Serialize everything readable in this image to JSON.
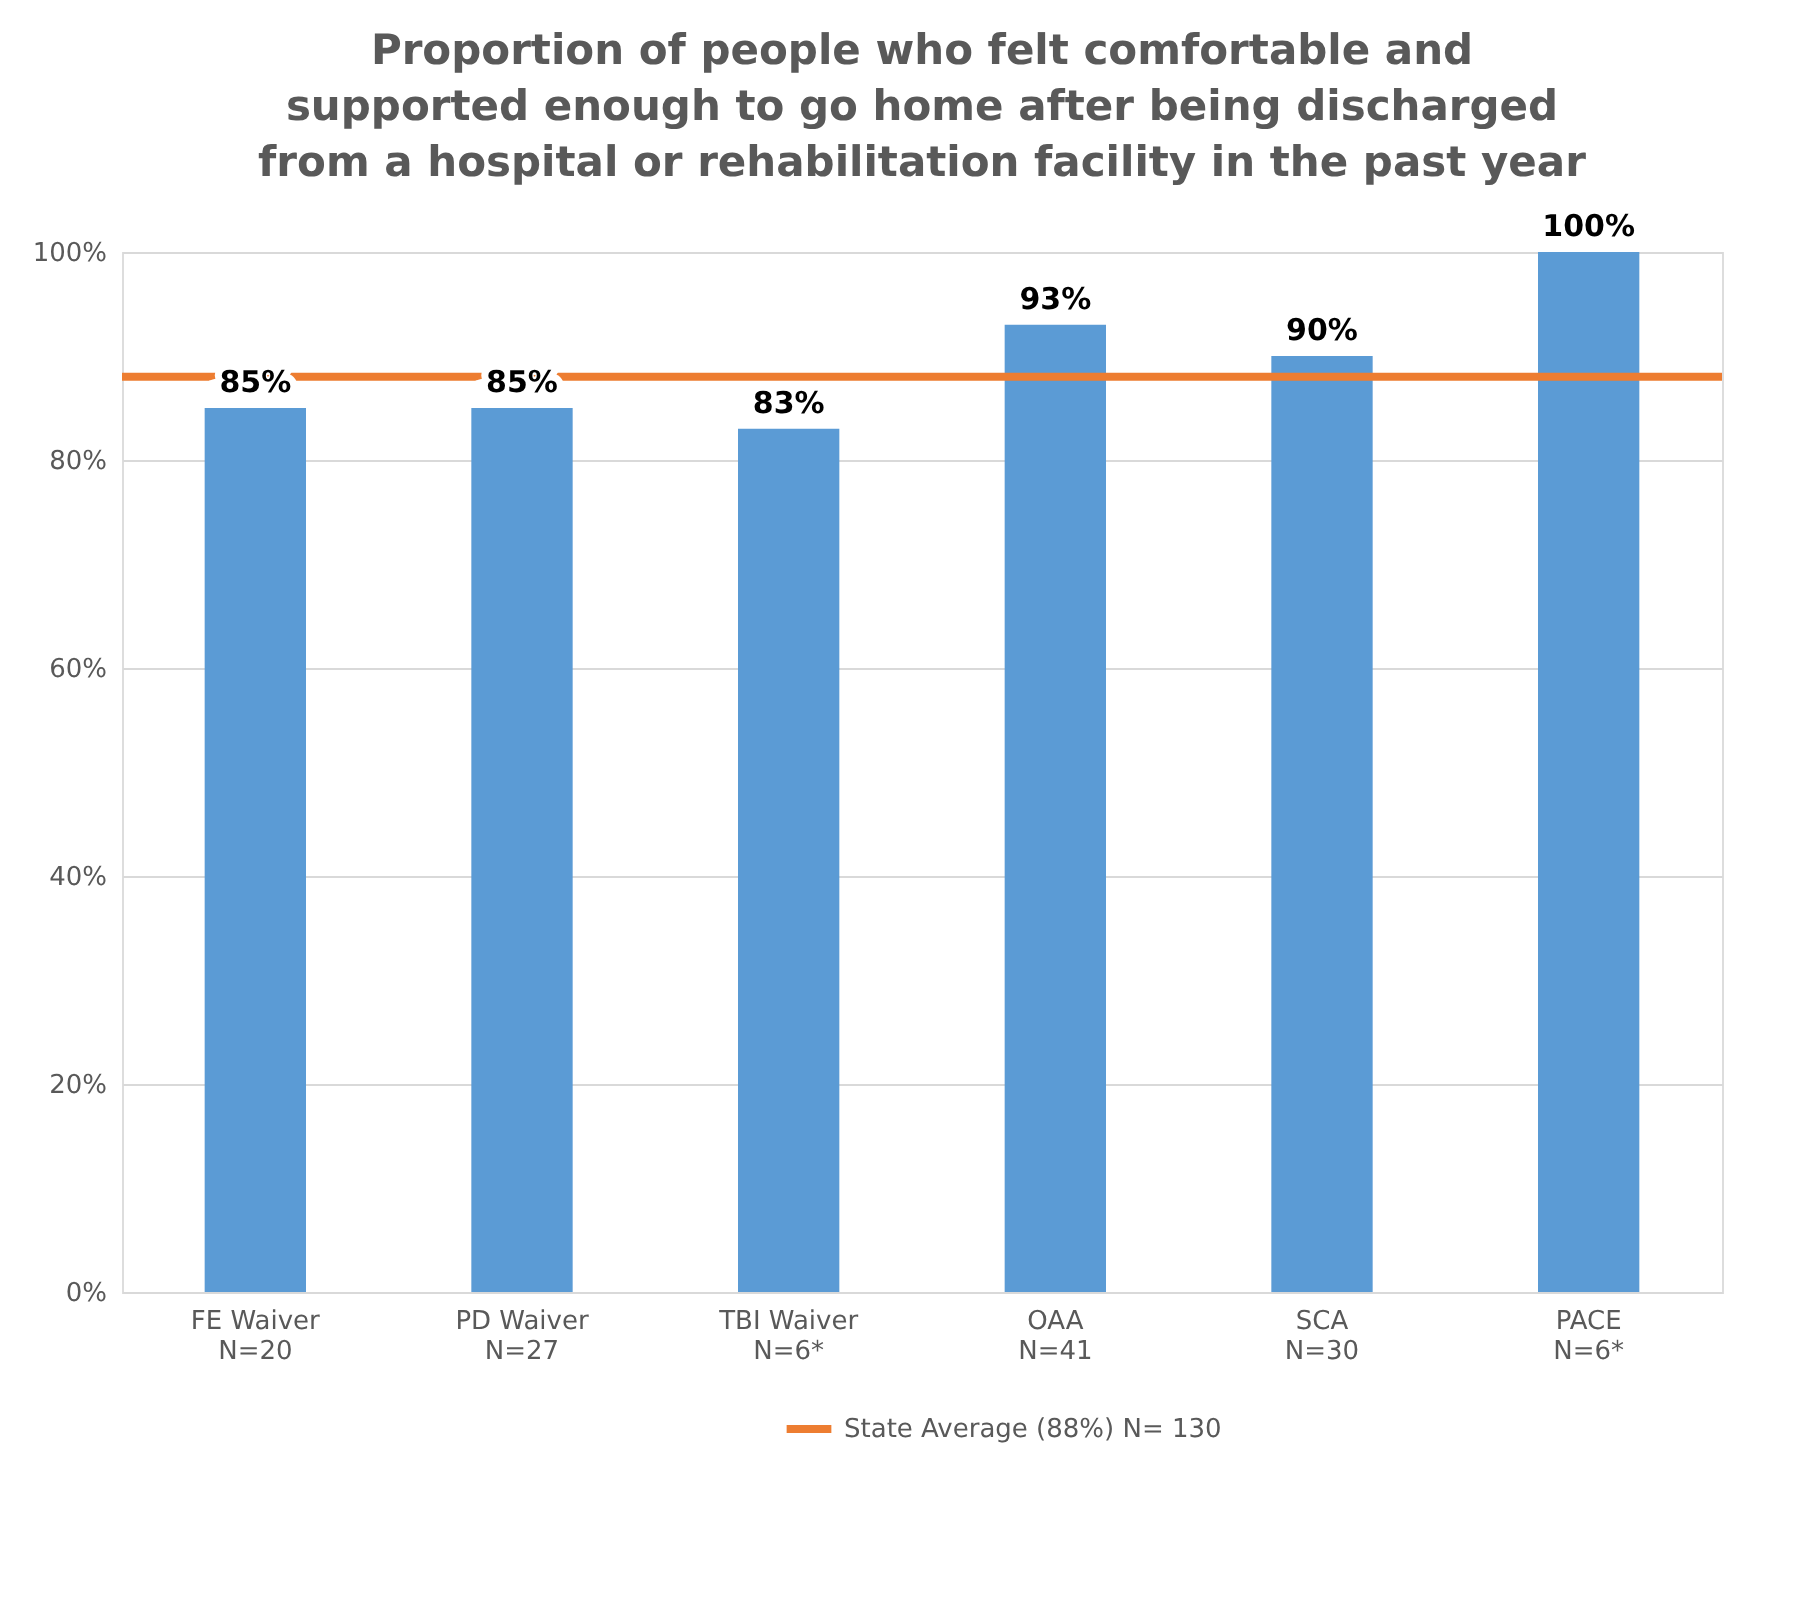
{
  "chart_data": {
    "type": "bar",
    "title": "Proportion of people who felt comfortable and\nsupported enough to go home after being discharged\nfrom a hospital or rehabilitation facility in the past year",
    "categories": [
      "FE Waiver\nN=20",
      "PD Waiver\nN=27",
      "TBI Waiver\nN=6*",
      "OAA\nN=41",
      "SCA\nN=30",
      "PACE\nN=6*"
    ],
    "values": [
      85,
      85,
      83,
      93,
      90,
      100
    ],
    "color": "#5b9bd5",
    "data_labels": true,
    "value_labels": [
      "85%",
      "85%",
      "83%",
      "93%",
      "90%",
      "100%"
    ],
    "ylim": [
      0,
      100
    ],
    "yticks": [
      {
        "value": 0,
        "label": "0%"
      },
      {
        "value": 20,
        "label": "20%"
      },
      {
        "value": 40,
        "label": "40%"
      },
      {
        "value": 60,
        "label": "60%"
      },
      {
        "value": 80,
        "label": "80%"
      },
      {
        "value": 100,
        "label": "100%"
      }
    ],
    "grid": "y",
    "legend": "bottom",
    "ref_lines": [
      {
        "axis": "y",
        "value": 88,
        "label": "State Average (88%) N= 130",
        "color": "#ed7d31",
        "line_style": "solid"
      }
    ]
  }
}
